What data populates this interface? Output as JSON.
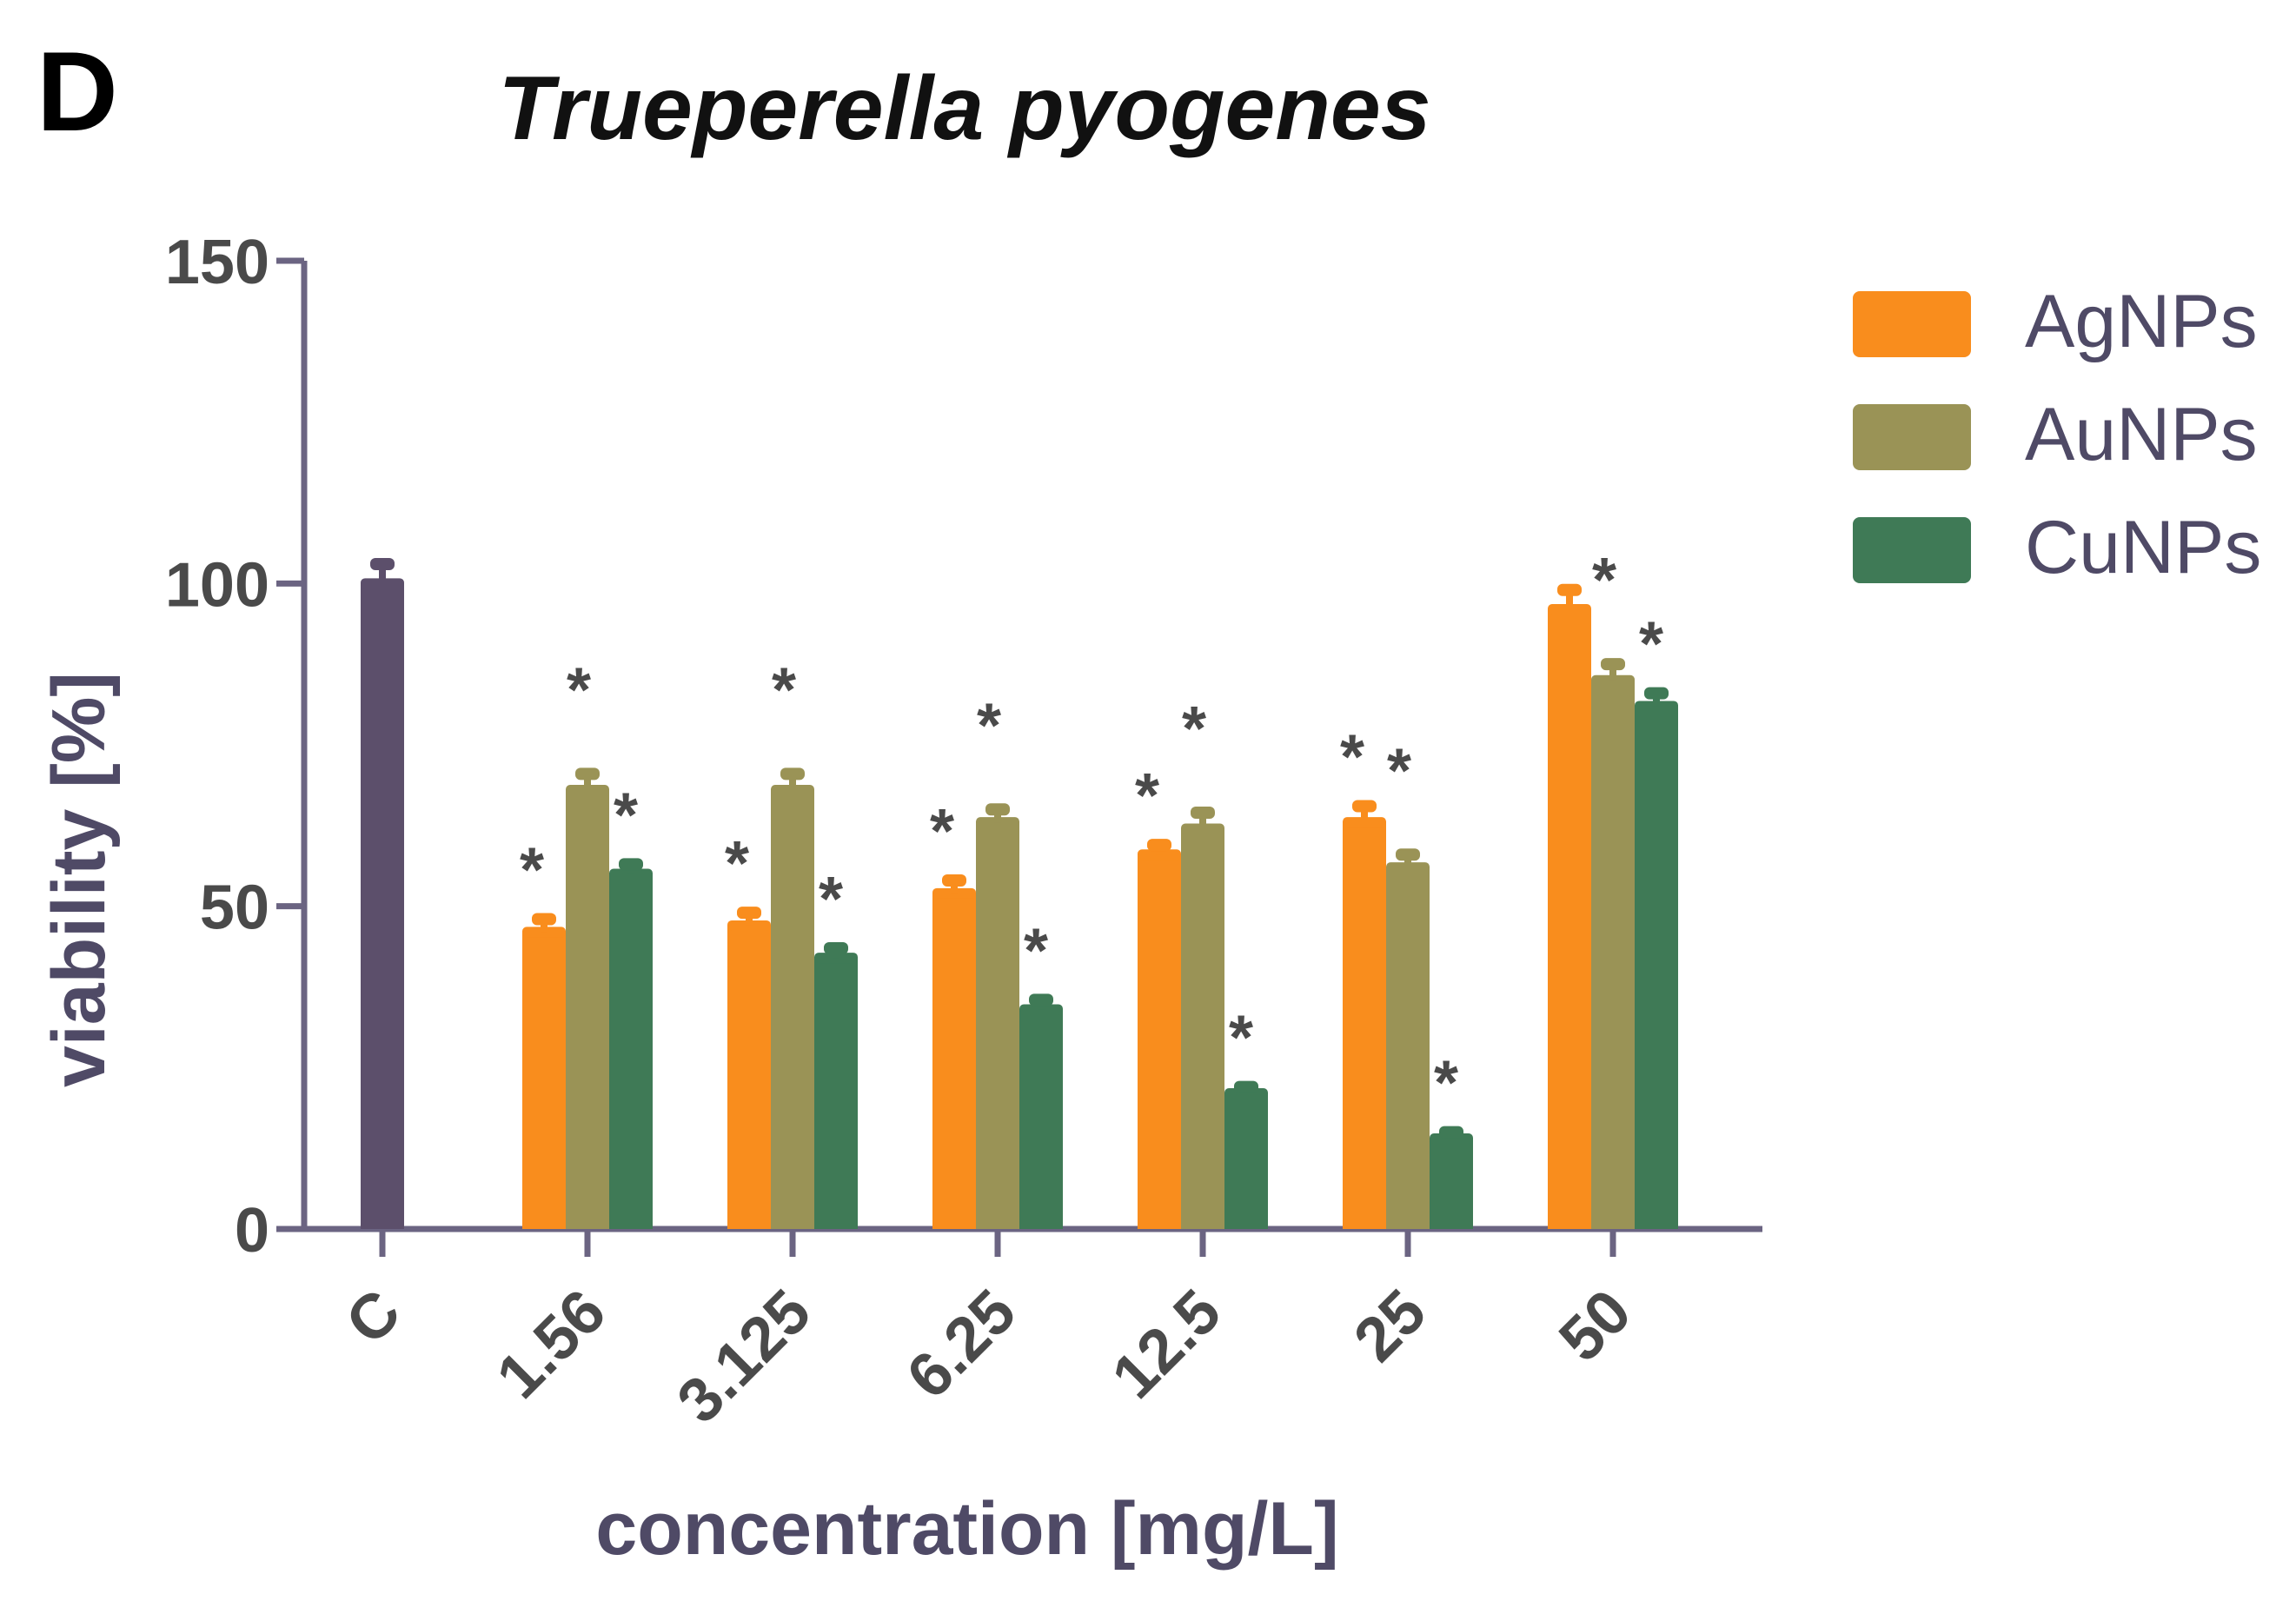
{
  "panel_label": "D",
  "colors": {
    "axis": "#6b6482",
    "axis_text": "#4a4a4a",
    "control": "#5c4f6b",
    "AgNPs": "#f98d1d",
    "AuNPs": "#9a9356",
    "CuNPs": "#3f7a56",
    "star": "#4a4a4a",
    "legend_text": "#4f4a66"
  },
  "chart_data": {
    "type": "bar",
    "title": "Trueperella pyogenes",
    "xlabel": "concentration [mg/L]",
    "ylabel": "viability [%]",
    "ylim": [
      0,
      150
    ],
    "yticks": [
      0,
      50,
      100,
      150
    ],
    "categories": [
      "C",
      "1.56",
      "3.125",
      "6.25",
      "12.5",
      "25",
      "50"
    ],
    "control": {
      "category": "C",
      "value": 100,
      "error": 3
    },
    "series": [
      {
        "name": "AgNPs",
        "values": [
          null,
          46,
          47,
          52,
          58,
          63,
          96
        ],
        "errors": [
          null,
          2,
          2,
          2,
          1.5,
          2.5,
          3
        ],
        "significant": [
          false,
          true,
          true,
          true,
          true,
          true,
          false
        ]
      },
      {
        "name": "AuNPs",
        "values": [
          null,
          68,
          68,
          63,
          62,
          56,
          85
        ],
        "errors": [
          null,
          2.5,
          2.5,
          2,
          2.5,
          2,
          2.5
        ],
        "significant": [
          false,
          true,
          true,
          true,
          true,
          true,
          true
        ]
      },
      {
        "name": "CuNPs",
        "values": [
          null,
          55,
          42,
          34,
          21,
          14,
          81
        ],
        "errors": [
          null,
          1.5,
          1.5,
          1.5,
          1,
          1,
          2
        ],
        "significant": [
          false,
          true,
          true,
          true,
          true,
          true,
          true
        ]
      }
    ],
    "significance_marker": "*",
    "legend": [
      "AgNPs",
      "AuNPs",
      "CuNPs"
    ],
    "legend_position": "top-right",
    "grid": false
  }
}
